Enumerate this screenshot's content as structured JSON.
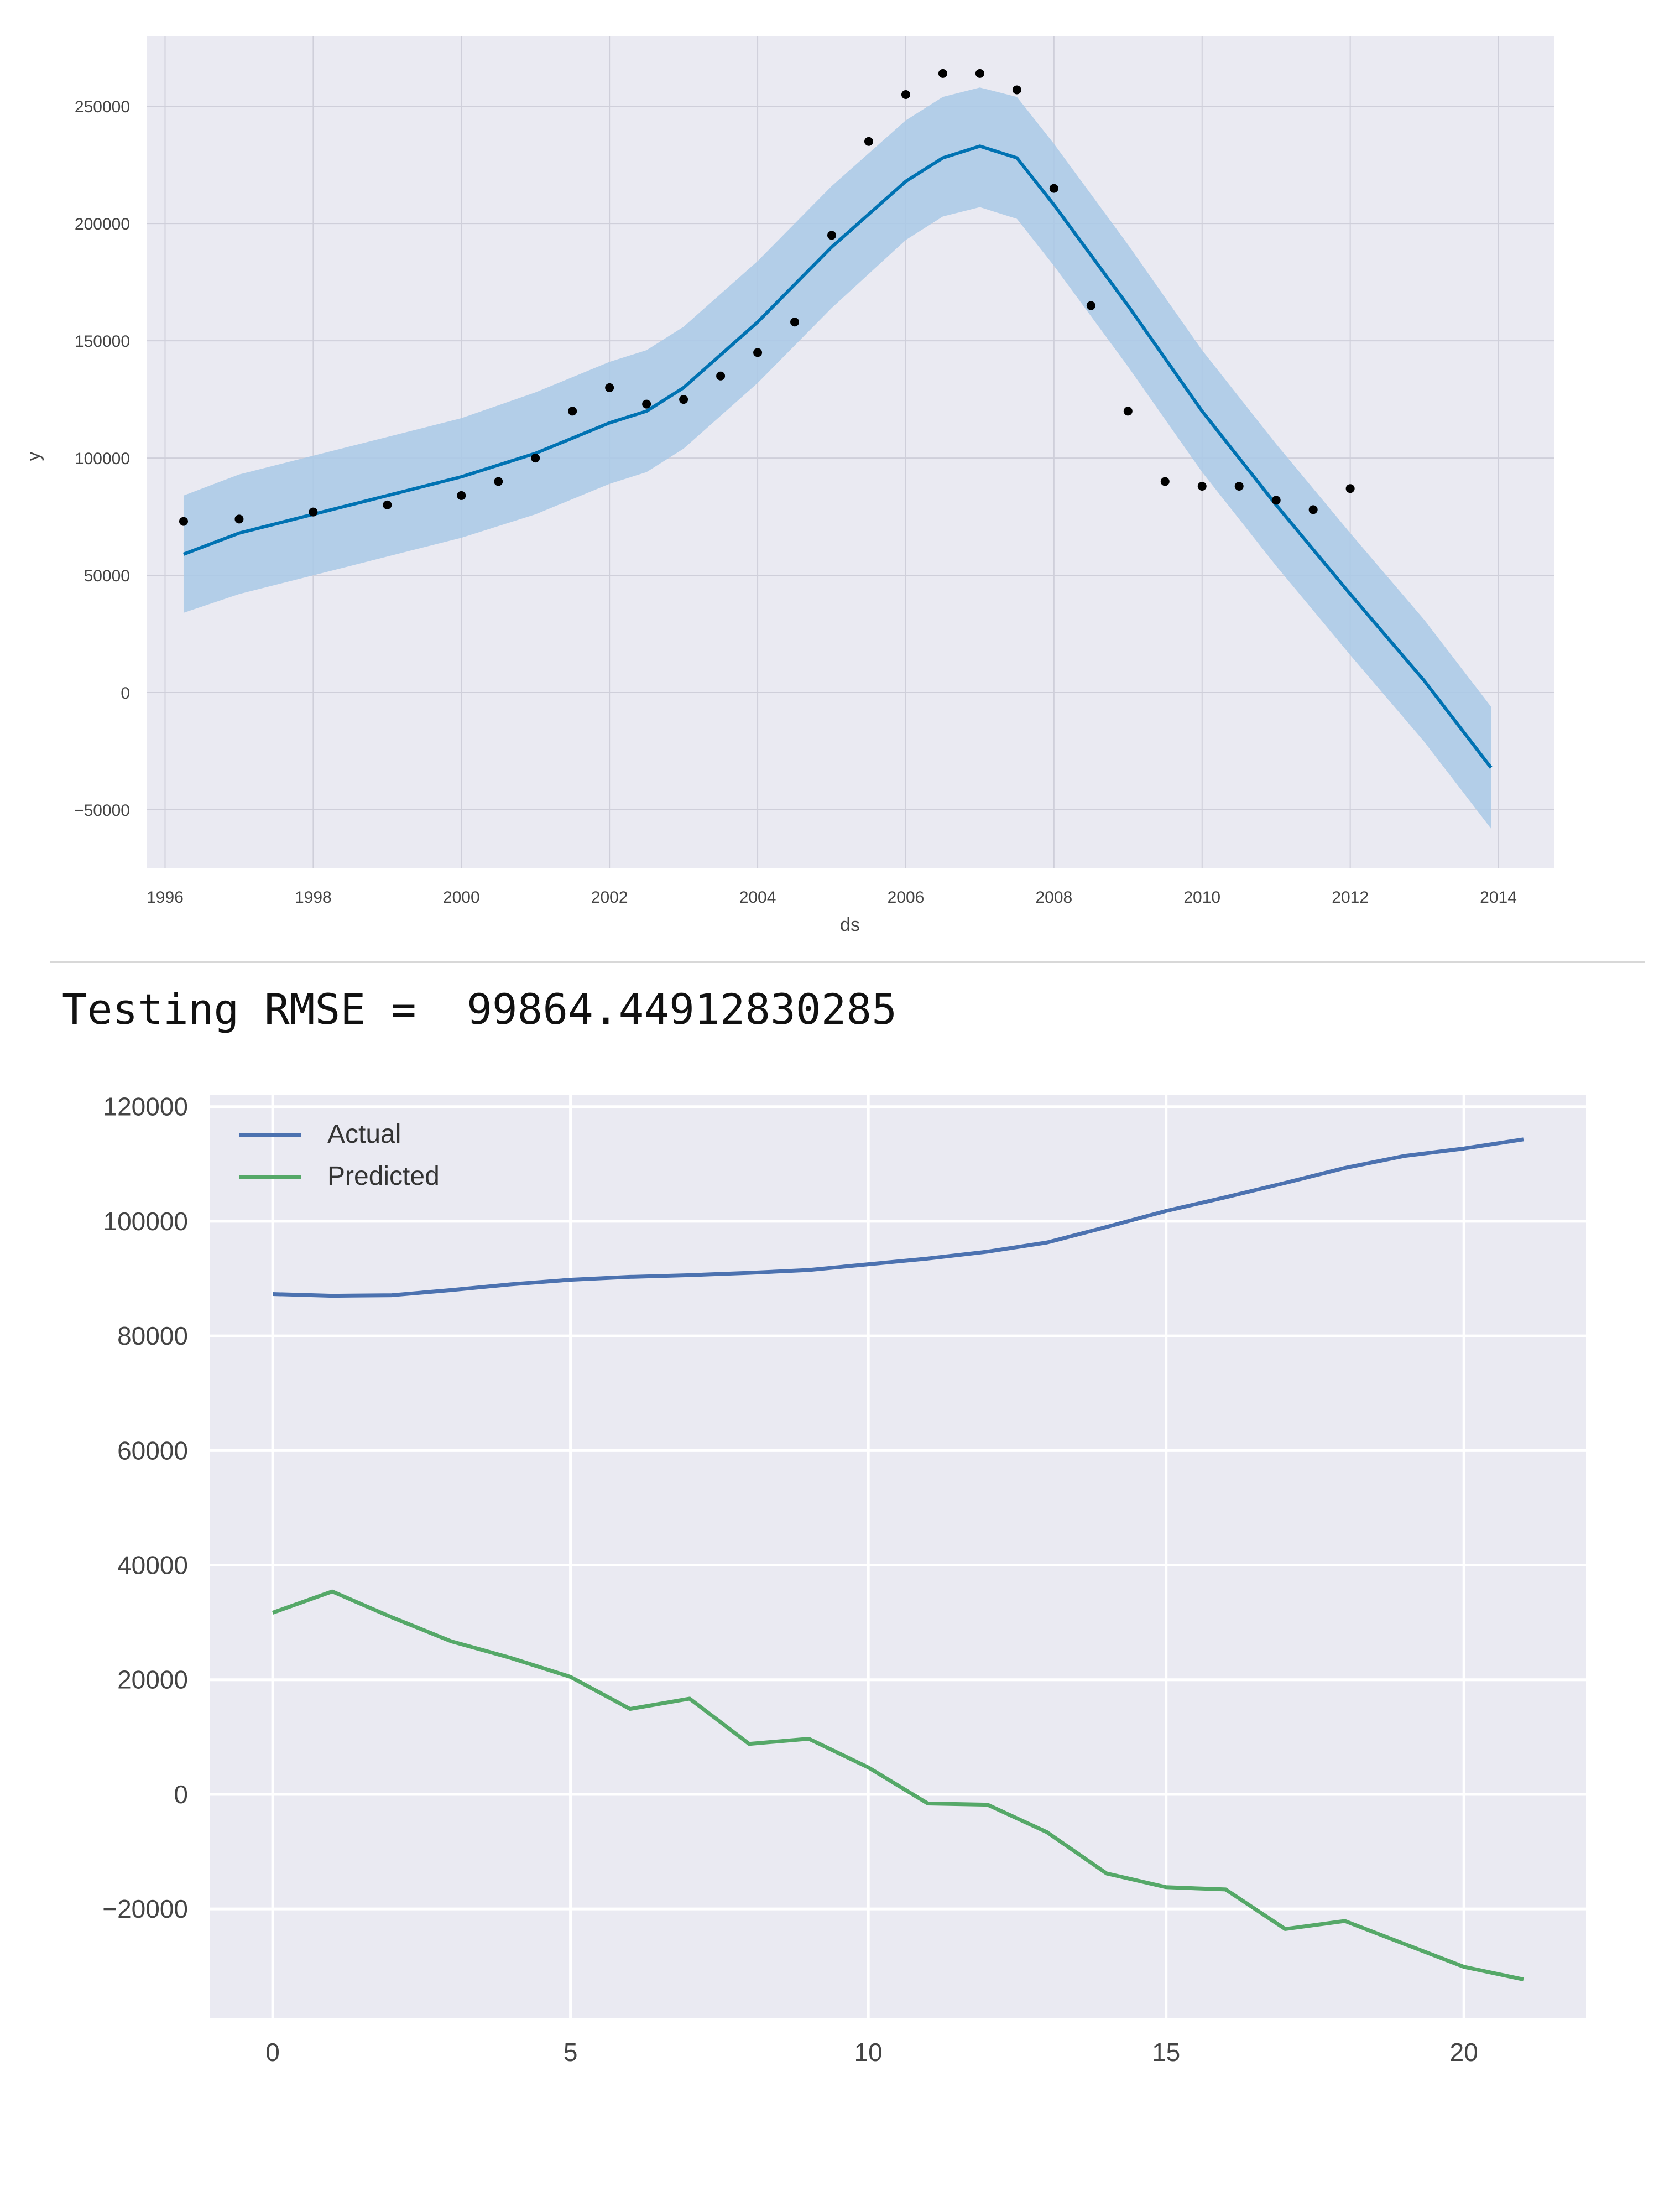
{
  "rmse_text": "Testing RMSE =  99864.44912830285",
  "chart_data": [
    {
      "type": "line",
      "xlabel": "ds",
      "ylabel": "y",
      "xlim": [
        1995.75,
        2014.75
      ],
      "ylim": [
        -75000,
        280000
      ],
      "x_ticks": [
        1996,
        1998,
        2000,
        2002,
        2004,
        2006,
        2008,
        2010,
        2012,
        2014
      ],
      "y_ticks": [
        -50000,
        0,
        50000,
        100000,
        150000,
        200000,
        250000
      ],
      "grid": true,
      "colors": {
        "forecast": "#0072B2",
        "band": "#a9c9e6",
        "observed": "#000000",
        "background": "#eaeaf2",
        "grid": "#cfcfda"
      },
      "forecast": {
        "x": [
          1996.25,
          1997,
          1998,
          1999,
          2000,
          2001,
          2002,
          2002.5,
          2003,
          2004,
          2005,
          2006,
          2006.5,
          2007,
          2007.5,
          2008,
          2009,
          2010,
          2011,
          2012,
          2013,
          2013.9
        ],
        "yhat": [
          59000,
          68000,
          76000,
          84000,
          92000,
          102000,
          115000,
          120000,
          130000,
          158000,
          190000,
          218000,
          228000,
          233000,
          228000,
          208000,
          165000,
          120000,
          80000,
          42000,
          5000,
          -32000
        ],
        "yhat_lower": [
          34000,
          42000,
          50000,
          58000,
          66000,
          76000,
          89000,
          94000,
          104000,
          132000,
          164000,
          193000,
          203000,
          207000,
          202000,
          182000,
          139000,
          94000,
          54000,
          16000,
          -21000,
          -58000
        ],
        "yhat_upper": [
          84000,
          93000,
          101000,
          109000,
          117000,
          128000,
          141000,
          146000,
          156000,
          184000,
          216000,
          244000,
          254000,
          258000,
          254000,
          234000,
          191000,
          146000,
          106000,
          68000,
          31000,
          -6000
        ]
      },
      "observed": {
        "x": [
          1996.25,
          1997,
          1998,
          1999,
          2000,
          2000.5,
          2001,
          2001.5,
          2002,
          2002.5,
          2003,
          2003.5,
          2004,
          2004.5,
          2005,
          2005.5,
          2006,
          2006.5,
          2007,
          2007.5,
          2008,
          2008.5,
          2009,
          2009.5,
          2010,
          2010.5,
          2011,
          2011.5,
          2012
        ],
        "y": [
          73000,
          74000,
          77000,
          80000,
          84000,
          90000,
          100000,
          120000,
          130000,
          123000,
          125000,
          135000,
          145000,
          158000,
          195000,
          235000,
          255000,
          264000,
          264000,
          257000,
          215000,
          165000,
          120000,
          90000,
          88000,
          88000,
          82000,
          78000,
          87000
        ]
      }
    },
    {
      "type": "line",
      "xlim": [
        -1.05,
        22.05
      ],
      "ylim": [
        -39000,
        122000
      ],
      "x_ticks": [
        0,
        5,
        10,
        15,
        20
      ],
      "y_ticks": [
        -20000,
        0,
        20000,
        40000,
        60000,
        80000,
        100000,
        120000
      ],
      "grid": true,
      "legend_position": "top-left",
      "colors": {
        "background": "#eaeaf2",
        "grid": "#ffffff"
      },
      "series": [
        {
          "name": "Actual",
          "color": "#4C72B0",
          "x": [
            0,
            1,
            2,
            3,
            4,
            5,
            6,
            7,
            8,
            9,
            10,
            11,
            12,
            13,
            14,
            15,
            16,
            17,
            18,
            19,
            20,
            21
          ],
          "values": [
            87300,
            87000,
            87100,
            88000,
            89000,
            89800,
            90300,
            90600,
            91000,
            91500,
            92500,
            93500,
            94700,
            96300,
            99000,
            101800,
            104200,
            106700,
            109300,
            111400,
            112700,
            114300
          ]
        },
        {
          "name": "Predicted",
          "color": "#55A868",
          "x": [
            0,
            1,
            2,
            3,
            4,
            5,
            6,
            7,
            8,
            9,
            10,
            11,
            12,
            13,
            14,
            15,
            16,
            17,
            18,
            19,
            20,
            21
          ],
          "values": [
            31700,
            35400,
            30900,
            26700,
            23800,
            20500,
            14900,
            16700,
            8800,
            9700,
            4700,
            -1600,
            -1800,
            -6600,
            -13800,
            -16200,
            -16600,
            -23500,
            -22100,
            -26100,
            -30100,
            -32300
          ]
        }
      ]
    }
  ]
}
